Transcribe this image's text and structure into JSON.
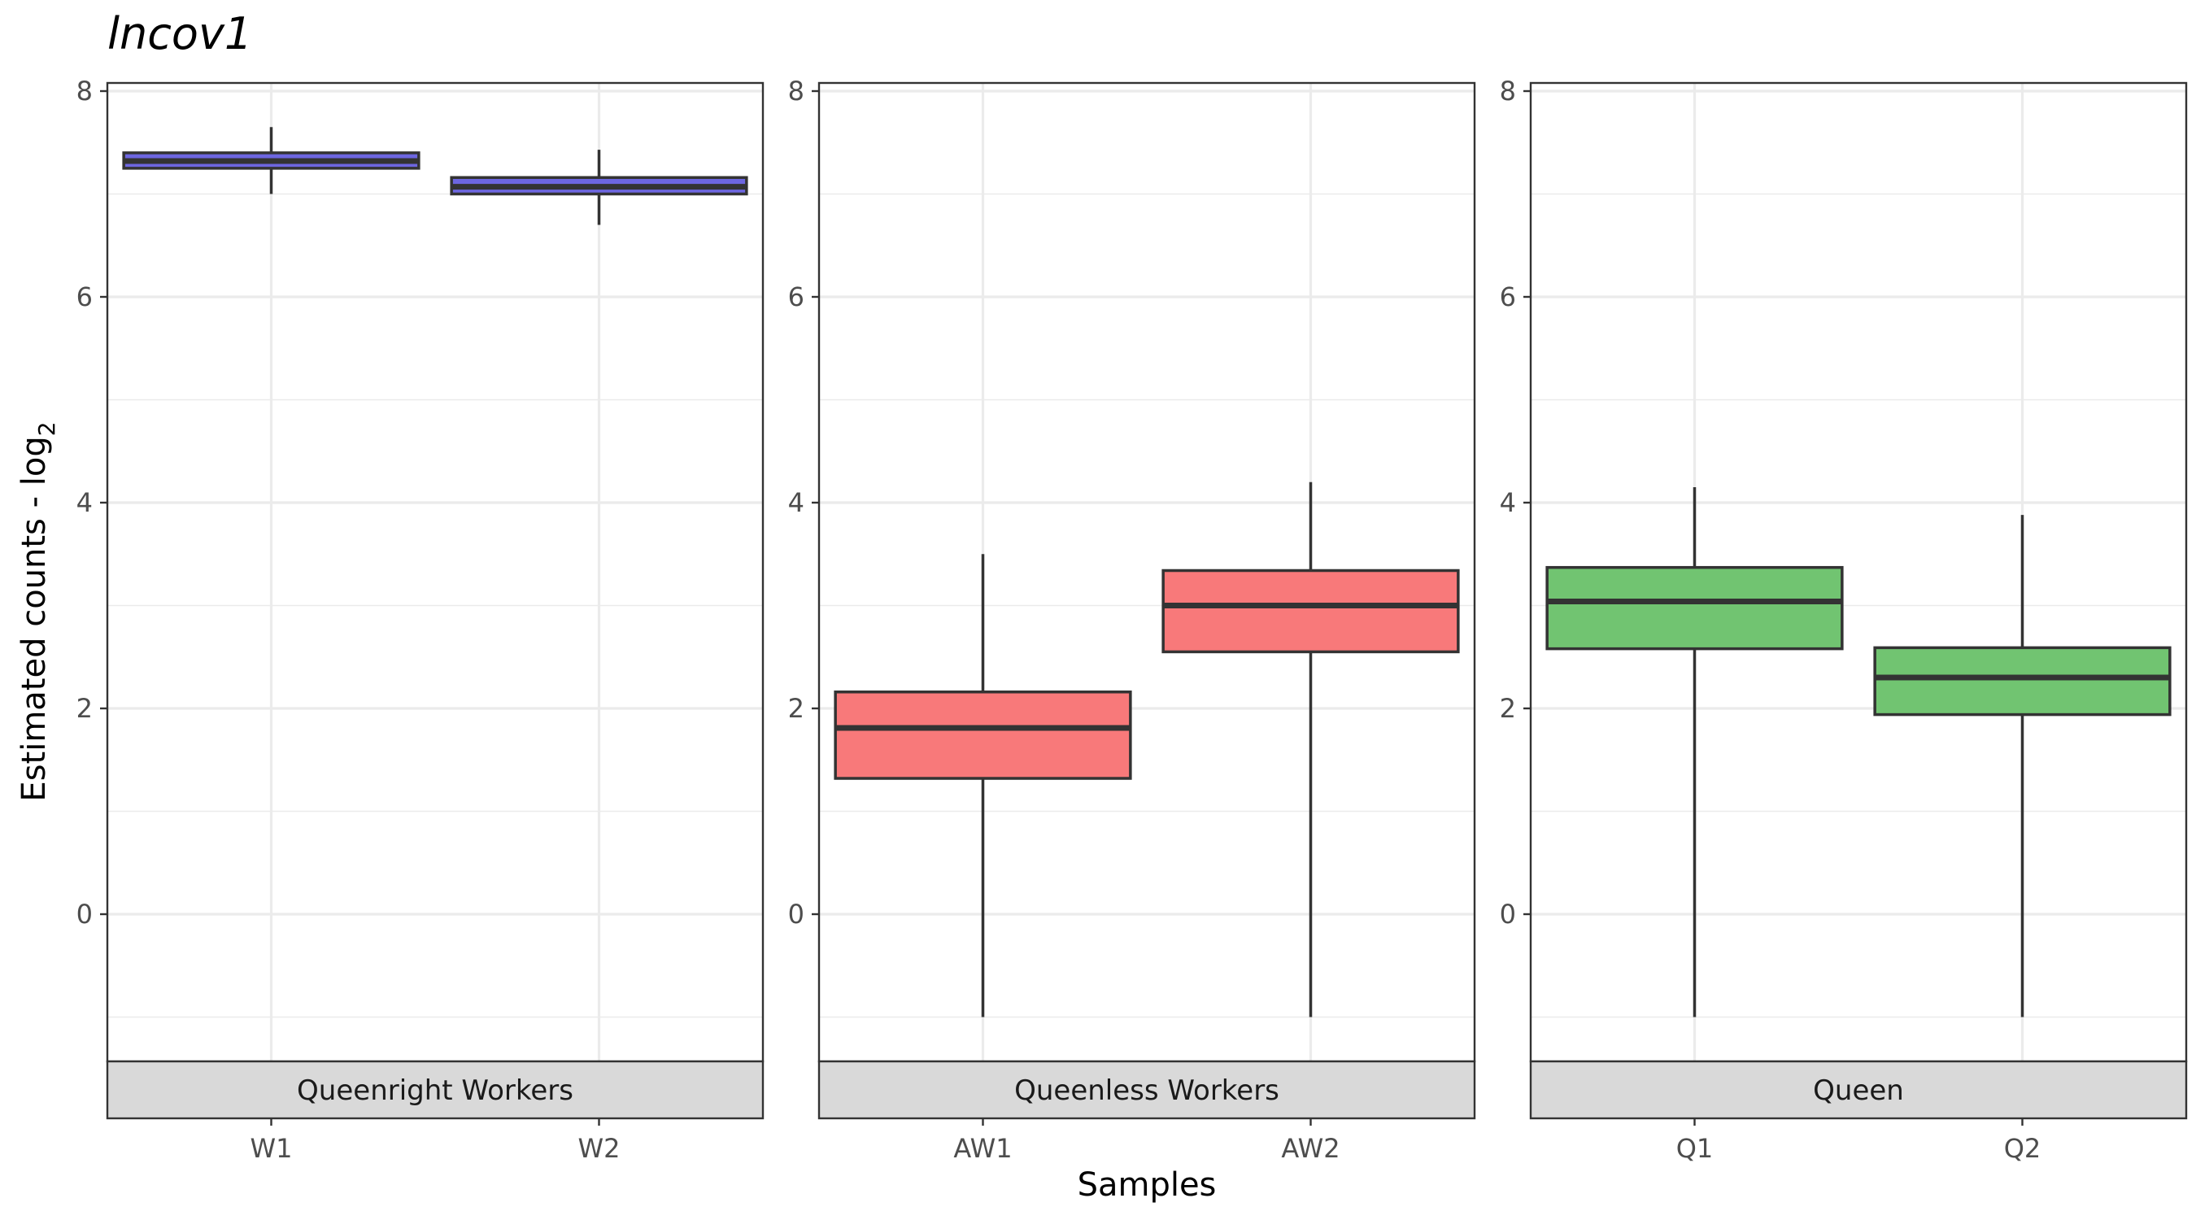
{
  "chart_data": {
    "type": "box",
    "title": "lncov1",
    "xlabel": "Samples",
    "ylabel": "Estimated counts - log",
    "ylabel_subscript": "2",
    "ylim": [
      -1,
      8
    ],
    "yticks": [
      0,
      2,
      4,
      6,
      8
    ],
    "grid": true,
    "facet_label_position": "bottom",
    "panels": [
      {
        "label": "Queenright Workers",
        "color": "#6d66e0",
        "boxes": [
          {
            "sample": "W1",
            "whisker_low": 7.0,
            "q1": 7.25,
            "median": 7.32,
            "q3": 7.4,
            "whisker_high": 7.65
          },
          {
            "sample": "W2",
            "whisker_low": 6.7,
            "q1": 7.0,
            "median": 7.07,
            "q3": 7.16,
            "whisker_high": 7.43
          }
        ]
      },
      {
        "label": "Queenless Workers",
        "color": "#f8797a",
        "boxes": [
          {
            "sample": "AW1",
            "whisker_low": -1.0,
            "q1": 1.32,
            "median": 1.81,
            "q3": 2.16,
            "whisker_high": 3.5
          },
          {
            "sample": "AW2",
            "whisker_low": -1.0,
            "q1": 2.55,
            "median": 3.0,
            "q3": 3.34,
            "whisker_high": 4.2
          }
        ]
      },
      {
        "label": "Queen",
        "color": "#71c471",
        "boxes": [
          {
            "sample": "Q1",
            "whisker_low": -1.0,
            "q1": 2.58,
            "median": 3.04,
            "q3": 3.37,
            "whisker_high": 4.15
          },
          {
            "sample": "Q2",
            "whisker_low": -1.0,
            "q1": 1.94,
            "median": 2.3,
            "q3": 2.59,
            "whisker_high": 3.88
          }
        ]
      }
    ]
  }
}
